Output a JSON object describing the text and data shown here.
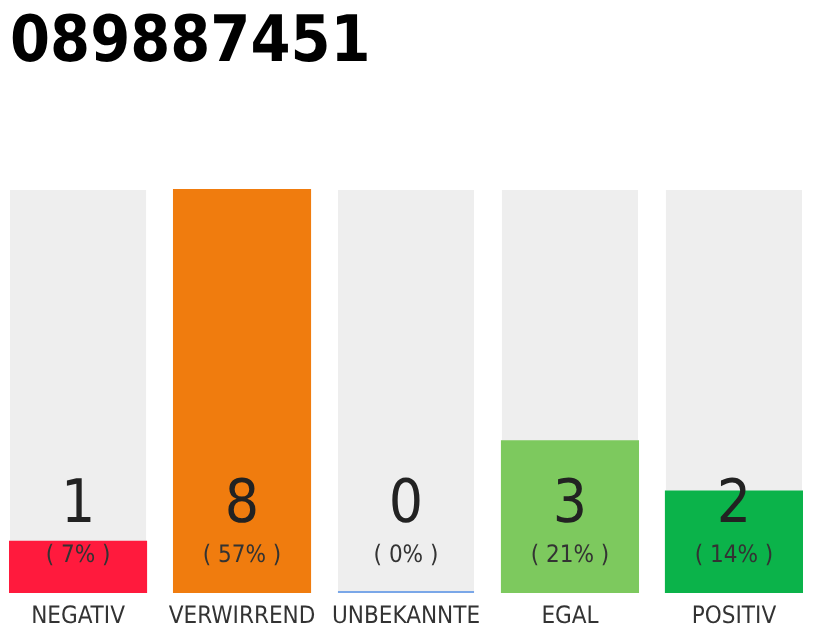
{
  "chart_data": {
    "type": "bar",
    "title": "089887451",
    "categories": [
      "NEGATIV",
      "VERWIRREND",
      "UNBEKANNTE",
      "EGAL",
      "POSITIV"
    ],
    "values": [
      1,
      8,
      0,
      3,
      2
    ],
    "colors": [
      "#ff1a3d",
      "#f07c0e",
      "#7aa7e8",
      "#7dc95e",
      "#0bb34a"
    ],
    "data_labels": true,
    "annotations": [
      "( 7% )",
      "( 57% )",
      "( 0% )",
      "( 21% )",
      "( 14% )"
    ]
  }
}
